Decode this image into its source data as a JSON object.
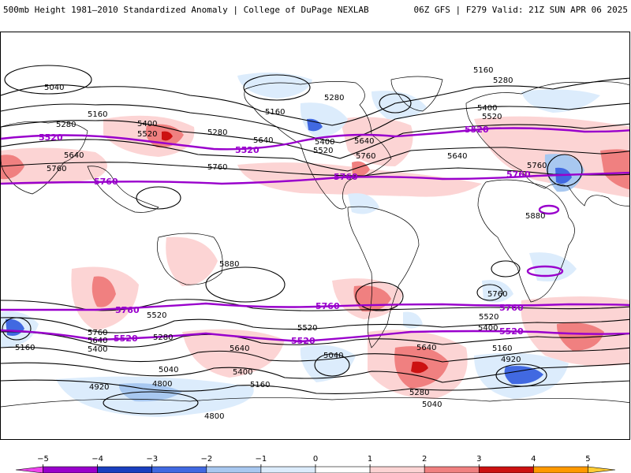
{
  "header": {
    "title_left": "500mb Height 1981–2010 Standardized Anomaly | College of DuPage NEXLAB",
    "title_right": "06Z GFS | F279 Valid: 21Z SUN APR 06 2025"
  },
  "map": {
    "projection": "cylindrical",
    "coastline_color": "#000000",
    "height_contour_color": "#000000",
    "highlight_contour_color": "#9900cc",
    "contour_labels": [
      {
        "id": "c1",
        "text": "5040"
      },
      {
        "id": "c2",
        "text": "5160"
      },
      {
        "id": "c3",
        "text": "5280"
      },
      {
        "id": "c4",
        "text": "5520",
        "highlight": true
      },
      {
        "id": "c5",
        "text": "5640"
      },
      {
        "id": "c6",
        "text": "5760"
      },
      {
        "id": "c7",
        "text": "5760",
        "highlight": true
      },
      {
        "id": "c8",
        "text": "5400"
      },
      {
        "id": "c9",
        "text": "5520"
      },
      {
        "id": "c10",
        "text": "5280"
      },
      {
        "id": "c11",
        "text": "5160"
      },
      {
        "id": "c12",
        "text": "5640"
      },
      {
        "id": "c13",
        "text": "5520",
        "highlight": true
      },
      {
        "id": "c14",
        "text": "5760"
      },
      {
        "id": "c15",
        "text": "5280"
      },
      {
        "id": "c16",
        "text": "5400"
      },
      {
        "id": "c17",
        "text": "5520"
      },
      {
        "id": "c18",
        "text": "5640"
      },
      {
        "id": "c19",
        "text": "5760"
      },
      {
        "id": "c20",
        "text": "5760",
        "highlight": true
      },
      {
        "id": "c21",
        "text": "5640"
      },
      {
        "id": "c22",
        "text": "5160"
      },
      {
        "id": "c23",
        "text": "5280"
      },
      {
        "id": "c24",
        "text": "5400"
      },
      {
        "id": "c25",
        "text": "5520"
      },
      {
        "id": "c26",
        "text": "5520",
        "highlight": true
      },
      {
        "id": "c27",
        "text": "5760"
      },
      {
        "id": "c28",
        "text": "5760",
        "highlight": true
      },
      {
        "id": "c29",
        "text": "5880"
      },
      {
        "id": "c30",
        "text": "5880"
      },
      {
        "id": "c31",
        "text": "5760",
        "highlight": true
      },
      {
        "id": "c32",
        "text": "5520"
      },
      {
        "id": "c33",
        "text": "5280"
      },
      {
        "id": "c34",
        "text": "5760"
      },
      {
        "id": "c35",
        "text": "5640"
      },
      {
        "id": "c36",
        "text": "5400"
      },
      {
        "id": "c37",
        "text": "5160"
      },
      {
        "id": "c38",
        "text": "5520",
        "highlight": true
      },
      {
        "id": "c39",
        "text": "5640"
      },
      {
        "id": "c40",
        "text": "5400"
      },
      {
        "id": "c41",
        "text": "5160"
      },
      {
        "id": "c42",
        "text": "5040"
      },
      {
        "id": "c43",
        "text": "4920"
      },
      {
        "id": "c44",
        "text": "4800"
      },
      {
        "id": "c45",
        "text": "4800"
      },
      {
        "id": "c46",
        "text": "5520"
      },
      {
        "id": "c47",
        "text": "5520",
        "highlight": true
      },
      {
        "id": "c48",
        "text": "5040"
      },
      {
        "id": "c49",
        "text": "5760",
        "highlight": true
      },
      {
        "id": "c50",
        "text": "5640"
      },
      {
        "id": "c51",
        "text": "5280"
      },
      {
        "id": "c52",
        "text": "5040"
      },
      {
        "id": "c53",
        "text": "5760"
      },
      {
        "id": "c54",
        "text": "5760",
        "highlight": true
      },
      {
        "id": "c55",
        "text": "5520"
      },
      {
        "id": "c56",
        "text": "5400"
      },
      {
        "id": "c57",
        "text": "5520",
        "highlight": true
      },
      {
        "id": "c58",
        "text": "5160"
      },
      {
        "id": "c59",
        "text": "4920"
      }
    ]
  },
  "colorbar": {
    "min": -5.5,
    "max": 5.5,
    "bins": [
      {
        "from": -5.5,
        "to": -5,
        "color": "#ee44ee"
      },
      {
        "from": -5,
        "to": -4,
        "color": "#9900cc"
      },
      {
        "from": -4,
        "to": -3,
        "color": "#1a3fbf"
      },
      {
        "from": -3,
        "to": -2,
        "color": "#4169e1"
      },
      {
        "from": -2,
        "to": -1,
        "color": "#a8c8f0"
      },
      {
        "from": -1,
        "to": 0,
        "color": "#dcecfc"
      },
      {
        "from": 0,
        "to": 1,
        "color": "#ffffff"
      },
      {
        "from": 1,
        "to": 2,
        "color": "#fcd4d4"
      },
      {
        "from": 2,
        "to": 3,
        "color": "#f08080"
      },
      {
        "from": 3,
        "to": 4,
        "color": "#cc1111"
      },
      {
        "from": 4,
        "to": 5,
        "color": "#ff9900"
      },
      {
        "from": 5,
        "to": 5.5,
        "color": "#ffcc33"
      }
    ],
    "ticks": [
      {
        "value": -5,
        "label": "−5"
      },
      {
        "value": -4,
        "label": "−4"
      },
      {
        "value": -3,
        "label": "−3"
      },
      {
        "value": -2,
        "label": "−2"
      },
      {
        "value": -1,
        "label": "−1"
      },
      {
        "value": 0,
        "label": "0"
      },
      {
        "value": 1,
        "label": "1"
      },
      {
        "value": 2,
        "label": "2"
      },
      {
        "value": 3,
        "label": "3"
      },
      {
        "value": 4,
        "label": "4"
      },
      {
        "value": 5,
        "label": "5"
      }
    ]
  }
}
